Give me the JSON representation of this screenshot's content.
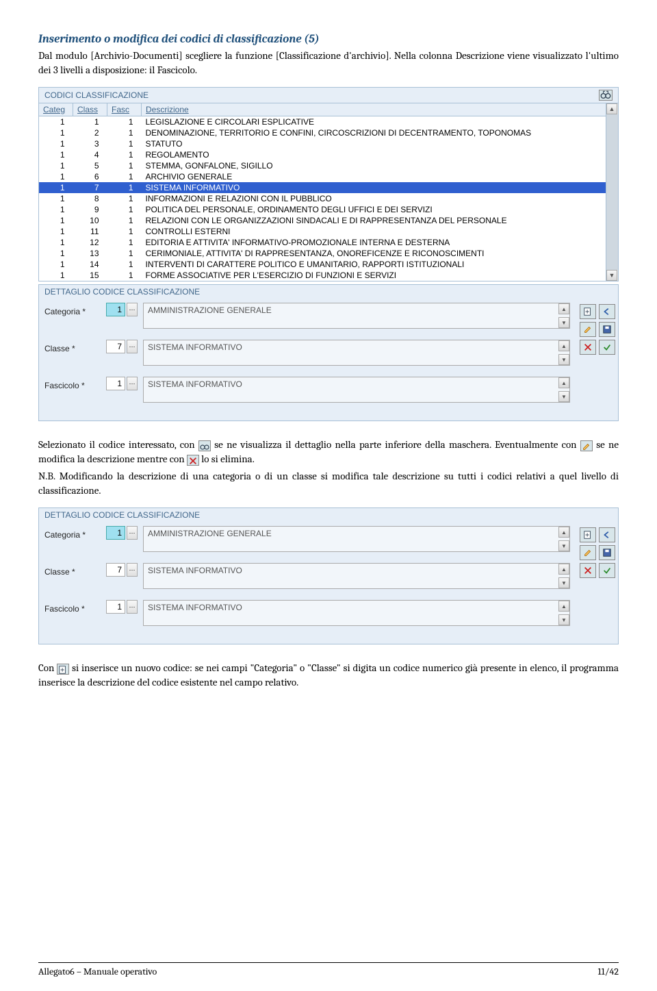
{
  "heading": "Inserimento o modifica dei codici di classificazione (5)",
  "intro1": "Dal modulo [Archivio-Documenti] scegliere la funzione [Classificazione d'archivio]. Nella colonna Descrizione viene visualizzato l'ultimo dei 3 livelli a disposizione: il Fascicolo.",
  "panel1": {
    "title": "CODICI CLASSIFICAZIONE",
    "cols": [
      "Categ",
      "Class",
      "Fasc",
      "Descrizione"
    ],
    "rows": [
      {
        "categ": "1",
        "class": "1",
        "fasc": "1",
        "desc": "LEGISLAZIONE E CIRCOLARI ESPLICATIVE"
      },
      {
        "categ": "1",
        "class": "2",
        "fasc": "1",
        "desc": "DENOMINAZIONE, TERRITORIO E CONFINI,  CIRCOSCRIZIONI DI DECENTRAMENTO, TOPONOMAS"
      },
      {
        "categ": "1",
        "class": "3",
        "fasc": "1",
        "desc": "STATUTO"
      },
      {
        "categ": "1",
        "class": "4",
        "fasc": "1",
        "desc": "REGOLAMENTO"
      },
      {
        "categ": "1",
        "class": "5",
        "fasc": "1",
        "desc": "STEMMA, GONFALONE, SIGILLO"
      },
      {
        "categ": "1",
        "class": "6",
        "fasc": "1",
        "desc": "ARCHIVIO GENERALE"
      },
      {
        "categ": "1",
        "class": "7",
        "fasc": "1",
        "desc": "SISTEMA INFORMATIVO",
        "selected": true
      },
      {
        "categ": "1",
        "class": "8",
        "fasc": "1",
        "desc": "INFORMAZIONI E RELAZIONI CON IL PUBBLICO"
      },
      {
        "categ": "1",
        "class": "9",
        "fasc": "1",
        "desc": "POLITICA DEL PERSONALE, ORDINAMENTO DEGLI UFFICI  E DEI SERVIZI"
      },
      {
        "categ": "1",
        "class": "10",
        "fasc": "1",
        "desc": "RELAZIONI CON LE ORGANIZZAZIONI SINDACALI E DI RAPPRESENTANZA DEL PERSONALE"
      },
      {
        "categ": "1",
        "class": "11",
        "fasc": "1",
        "desc": "CONTROLLI ESTERNI"
      },
      {
        "categ": "1",
        "class": "12",
        "fasc": "1",
        "desc": "EDITORIA E ATTIVITA' INFORMATIVO-PROMOZIONALE INTERNA E DESTERNA"
      },
      {
        "categ": "1",
        "class": "13",
        "fasc": "1",
        "desc": "CERIMONIALE, ATTIVITA' DI RAPPRESENTANZA,  ONOREFICENZE E RICONOSCIMENTI"
      },
      {
        "categ": "1",
        "class": "14",
        "fasc": "1",
        "desc": "INTERVENTI DI CARATTERE POLITICO E UMANITARIO,  RAPPORTI ISTITUZIONALI"
      },
      {
        "categ": "1",
        "class": "15",
        "fasc": "1",
        "desc": "FORME ASSOCIATIVE PER L'ESERCIZIO DI FUNZIONI E   SERVIZI"
      }
    ]
  },
  "detail": {
    "title": "DETTAGLIO CODICE CLASSIFICAZIONE",
    "categoria_label": "Categoria  *",
    "categoria_val": "1",
    "categoria_text": "AMMINISTRAZIONE GENERALE",
    "classe_label": "Classe  *",
    "classe_val": "7",
    "classe_text": "SISTEMA INFORMATIVO",
    "fascicolo_label": "Fascicolo  *",
    "fascicolo_val": "1",
    "fascicolo_text": "SISTEMA INFORMATIVO"
  },
  "para2a": "Selezionato il codice interessato, con ",
  "para2b": " se ne visualizza il dettaglio nella parte inferiore della maschera.  Eventualmente con ",
  "para2c": " se ne modifica la descrizione mentre con ",
  "para2d": " lo si elimina.",
  "para3": "N.B. Modificando la descrizione di una categoria o di un classe si modifica tale descrizione su tutti i codici relativi a quel livello di classificazione.",
  "para4a": "Con ",
  "para4b": " si inserisce un nuovo codice: se nei campi \"Categoria\" o \"Classe\" si digita un codice numerico già presente in elenco, il programma inserisce la descrizione del codice esistente nel campo relativo.",
  "footer_left": "Allegato6 – Manuale operativo",
  "footer_right": "11/42",
  "colors": {
    "heading": "#1e4f7a",
    "panel_bg": "#e6eef7",
    "panel_border": "#a8c0d6",
    "panel_text": "#40668a",
    "selected_bg": "#2f5fcf",
    "icon_bg": "#d8e6ea"
  }
}
